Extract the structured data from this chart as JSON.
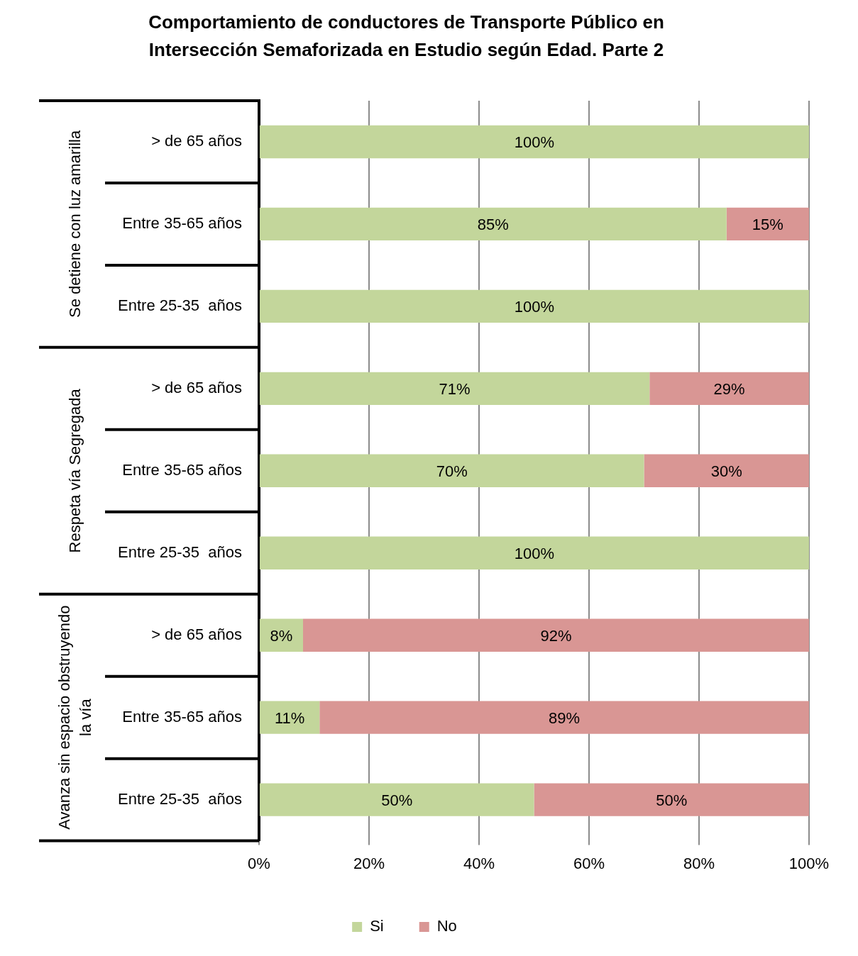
{
  "chart_data": {
    "type": "bar",
    "orientation": "horizontal",
    "stacked": true,
    "title": "Comportamiento de conductores de Transporte Público en Intersección Semaforizada en Estudio según Edad. Parte 2",
    "categories": [
      "> de 65 años",
      "Entre 35-65 años",
      "Entre 25-35  años",
      "> de 65 años",
      "Entre 35-65 años",
      "Entre 25-35  años",
      "> de 65 años",
      "Entre 35-65 años",
      "Entre 25-35  años"
    ],
    "series": [
      {
        "name": "Si",
        "color": "#c3d69b",
        "values": [
          100,
          85,
          100,
          71,
          70,
          100,
          8,
          11,
          50
        ],
        "value_labels": [
          "100%",
          "85%",
          "100%",
          "71%",
          "70%",
          "100%",
          "8%",
          "11%",
          "50%"
        ]
      },
      {
        "name": "No",
        "color": "#d99694",
        "values": [
          0,
          15,
          0,
          29,
          30,
          0,
          92,
          89,
          50
        ],
        "value_labels": [
          null,
          "15%",
          null,
          "29%",
          "30%",
          null,
          "92%",
          "89%",
          "50%"
        ]
      }
    ],
    "annotations": [
      "Se detiene con luz amarilla",
      "Respeta vía Segregada",
      "Avanza sin espacio obstruyendo la vía"
    ],
    "xlim": [
      0,
      100
    ],
    "xticks": [
      {
        "value": 0,
        "label": "0%"
      },
      {
        "value": 20,
        "label": "20%"
      },
      {
        "value": 40,
        "label": "40%"
      },
      {
        "value": 60,
        "label": "60%"
      },
      {
        "value": 80,
        "label": "80%"
      },
      {
        "value": 100,
        "label": "100%"
      }
    ],
    "grid": "x",
    "legend": "bottom"
  }
}
